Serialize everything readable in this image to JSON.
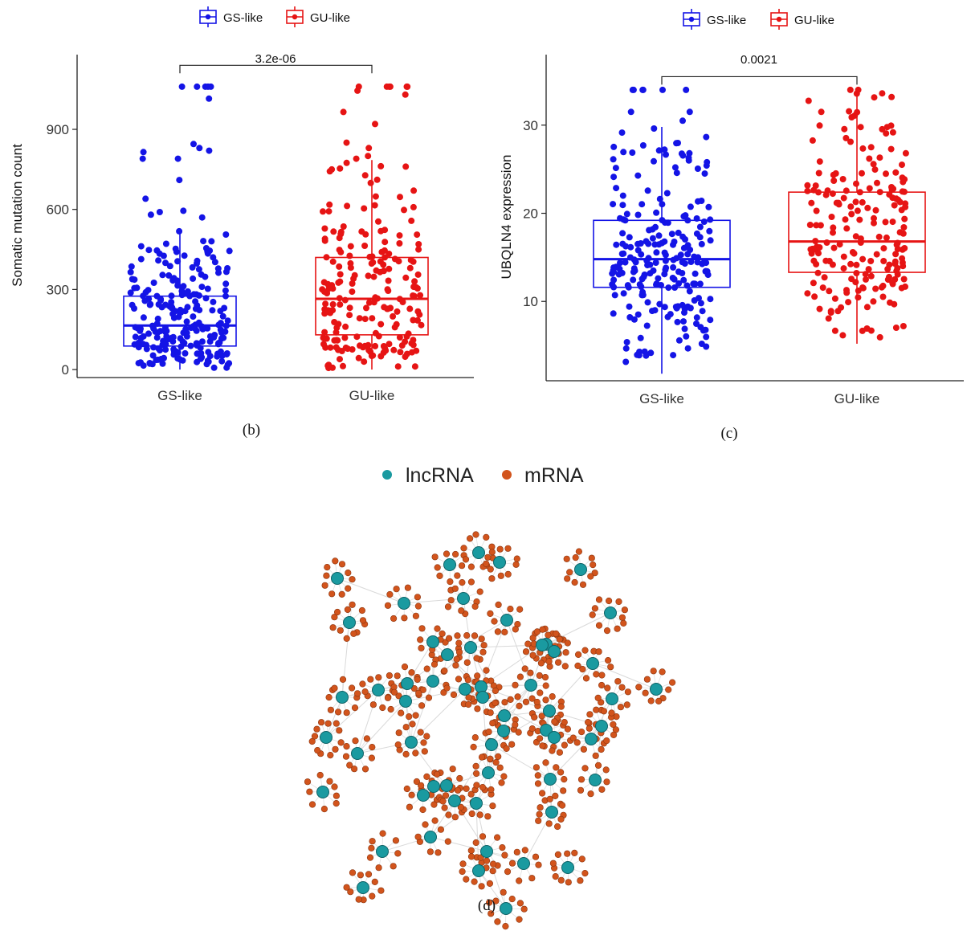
{
  "panels": {
    "b": {
      "caption": "(b)",
      "legend": [
        {
          "label": "GS-like",
          "color": "#1414e6"
        },
        {
          "label": "GU-like",
          "color": "#e61414"
        }
      ],
      "ylabel": "Somatic mutation count",
      "yticks": [
        "0",
        "300",
        "600",
        "900"
      ],
      "xticks": [
        "GS-like",
        "GU-like"
      ],
      "pvalue": "3.2e-06"
    },
    "c": {
      "caption": "(c)",
      "legend": [
        {
          "label": "GS-like",
          "color": "#1414e6"
        },
        {
          "label": "GU-like",
          "color": "#e61414"
        }
      ],
      "ylabel": "UBQLN4 expression",
      "yticks": [
        "10",
        "20",
        "30"
      ],
      "xticks": [
        "GS-like",
        "GU-like"
      ],
      "pvalue": "0.0021"
    },
    "d": {
      "caption": "(d)",
      "legend": [
        {
          "label": "lncRNA",
          "color": "#1a9aa0"
        },
        {
          "label": "mRNA",
          "color": "#d2541c"
        }
      ]
    }
  },
  "chart_data": [
    {
      "type": "box",
      "panel": "b",
      "ylabel": "Somatic mutation count",
      "ylim": [
        -30,
        1180
      ],
      "categories": [
        "GS-like",
        "GU-like"
      ],
      "series": [
        {
          "name": "GS-like",
          "color": "#1414e6",
          "box": {
            "min": 0,
            "q1": 88,
            "median": 165,
            "q3": 275,
            "max": 520
          },
          "outliers": [
            1060,
            1060,
            1060,
            1060,
            1060,
            1015,
            845,
            830,
            820,
            815,
            790,
            790,
            710,
            640,
            595,
            590,
            580,
            570
          ],
          "n_points": 230
        },
        {
          "name": "GU-like",
          "color": "#e61414",
          "box": {
            "min": 0,
            "q1": 130,
            "median": 265,
            "q3": 420,
            "max": 785
          },
          "outliers": [
            1060,
            1060,
            1060,
            1060,
            1060,
            1060,
            1045,
            1030,
            965,
            920,
            850,
            830,
            800,
            790
          ],
          "n_points": 200
        }
      ],
      "comparison": {
        "groups": [
          "GS-like",
          "GU-like"
        ],
        "p": "3.2e-06",
        "bracket_y": 1140
      }
    },
    {
      "type": "box",
      "panel": "c",
      "ylabel": "UBQLN4 expression",
      "ylim": [
        1,
        38
      ],
      "categories": [
        "GS-like",
        "GU-like"
      ],
      "series": [
        {
          "name": "GS-like",
          "color": "#1414e6",
          "box": {
            "min": 1.8,
            "q1": 11.6,
            "median": 14.8,
            "q3": 19.2,
            "max": 29.8
          },
          "outliers": [
            34,
            34,
            34,
            34,
            34,
            34,
            31.5,
            31.5,
            30.5
          ],
          "n_points": 230
        },
        {
          "name": "GU-like",
          "color": "#e61414",
          "box": {
            "min": 5.2,
            "q1": 13.3,
            "median": 16.8,
            "q3": 22.4,
            "max": 34
          },
          "outliers": [
            34,
            34
          ],
          "n_points": 200
        }
      ],
      "comparison": {
        "groups": [
          "GS-like",
          "GU-like"
        ],
        "p": "0.0021",
        "bracket_y": 35.5
      }
    },
    {
      "type": "network",
      "panel": "d",
      "node_types": [
        "lncRNA",
        "mRNA"
      ],
      "colors": {
        "lncRNA": "#1a9aa0",
        "mRNA": "#d2541c"
      }
    }
  ]
}
